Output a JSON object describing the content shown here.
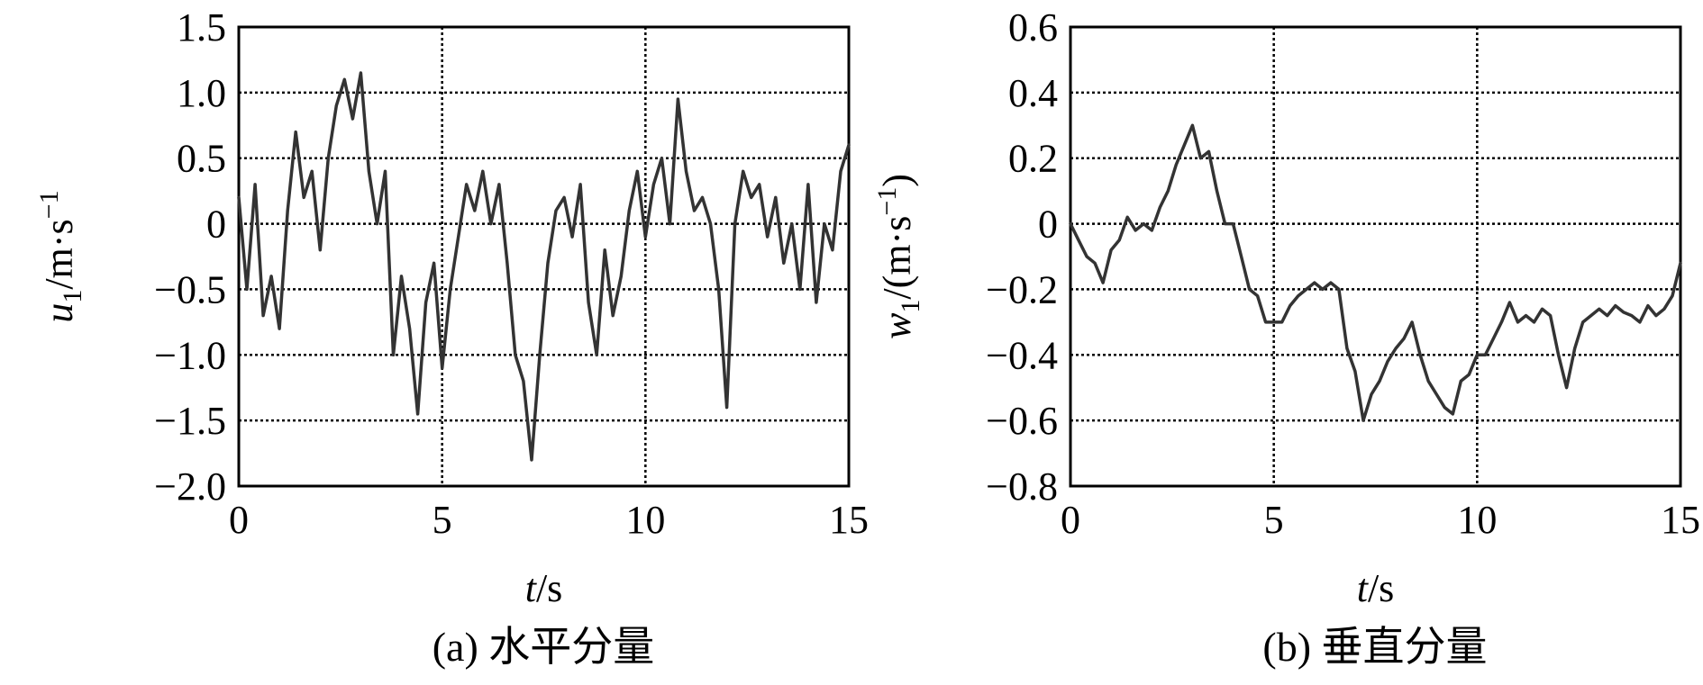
{
  "chart_data": [
    {
      "type": "line",
      "panel": "a",
      "caption": "(a) 水平分量",
      "xlabel": {
        "var": "t",
        "rest": "/s"
      },
      "ylabel": {
        "var": "u",
        "sub": "1",
        "rest": "/m·s",
        "sup": "−1"
      },
      "xlim": [
        0,
        15
      ],
      "ylim": [
        -2.0,
        1.5
      ],
      "xticks": [
        0,
        5,
        10,
        15
      ],
      "xtick_labels": [
        "0",
        "5",
        "10",
        "15"
      ],
      "yticks": [
        -2.0,
        -1.5,
        -1.0,
        -0.5,
        0,
        0.5,
        1.0,
        1.5
      ],
      "ytick_labels": [
        "−2.0",
        "−1.5",
        "−1.0",
        "−0.5",
        "0",
        "0.5",
        "1.0",
        "1.5"
      ],
      "grid": "dotted",
      "line_color": "#333333",
      "x": [
        0,
        0.2,
        0.4,
        0.6,
        0.8,
        1.0,
        1.2,
        1.4,
        1.6,
        1.8,
        2.0,
        2.2,
        2.4,
        2.6,
        2.8,
        3.0,
        3.2,
        3.4,
        3.6,
        3.8,
        4.0,
        4.2,
        4.4,
        4.6,
        4.8,
        5.0,
        5.2,
        5.4,
        5.6,
        5.8,
        6.0,
        6.2,
        6.4,
        6.6,
        6.8,
        7.0,
        7.2,
        7.4,
        7.6,
        7.8,
        8.0,
        8.2,
        8.4,
        8.6,
        8.8,
        9.0,
        9.2,
        9.4,
        9.6,
        9.8,
        10.0,
        10.2,
        10.4,
        10.6,
        10.8,
        11.0,
        11.2,
        11.4,
        11.6,
        11.8,
        12.0,
        12.2,
        12.4,
        12.6,
        12.8,
        13.0,
        13.2,
        13.4,
        13.6,
        13.8,
        14.0,
        14.2,
        14.4,
        14.6,
        14.8,
        15.0
      ],
      "y": [
        0.2,
        -0.5,
        0.3,
        -0.7,
        -0.4,
        -0.8,
        0.1,
        0.7,
        0.2,
        0.4,
        -0.2,
        0.5,
        0.9,
        1.1,
        0.8,
        1.15,
        0.4,
        0.0,
        0.4,
        -1.0,
        -0.4,
        -0.8,
        -1.45,
        -0.6,
        -0.3,
        -1.1,
        -0.5,
        -0.1,
        0.3,
        0.1,
        0.4,
        0.0,
        0.3,
        -0.3,
        -1.0,
        -1.2,
        -1.8,
        -1.0,
        -0.3,
        0.1,
        0.2,
        -0.1,
        0.3,
        -0.6,
        -1.0,
        -0.2,
        -0.7,
        -0.4,
        0.1,
        0.4,
        -0.1,
        0.3,
        0.5,
        0.0,
        0.95,
        0.4,
        0.1,
        0.2,
        0.0,
        -0.5,
        -1.4,
        0.0,
        0.4,
        0.2,
        0.3,
        -0.1,
        0.2,
        -0.3,
        0.0,
        -0.5,
        0.3,
        -0.6,
        0.0,
        -0.2,
        0.4,
        0.6
      ]
    },
    {
      "type": "line",
      "panel": "b",
      "caption": "(b) 垂直分量",
      "xlabel": {
        "var": "t",
        "rest": "/s"
      },
      "ylabel": {
        "var": "w",
        "sub": "1",
        "rest": "/(m·s",
        "sup": "−1",
        "close": ")"
      },
      "xlim": [
        0,
        15
      ],
      "ylim": [
        -0.8,
        0.6
      ],
      "xticks": [
        0,
        5,
        10,
        15
      ],
      "xtick_labels": [
        "0",
        "5",
        "10",
        "15"
      ],
      "yticks": [
        -0.8,
        -0.6,
        -0.4,
        -0.2,
        0,
        0.2,
        0.4,
        0.6
      ],
      "ytick_labels": [
        "−0.8",
        "−0.6",
        "−0.4",
        "−0.2",
        "0",
        "0.2",
        "0.4",
        "0.6"
      ],
      "grid": "dotted",
      "line_color": "#333333",
      "x": [
        0,
        0.2,
        0.4,
        0.6,
        0.8,
        1.0,
        1.2,
        1.4,
        1.6,
        1.8,
        2.0,
        2.2,
        2.4,
        2.6,
        2.8,
        3.0,
        3.2,
        3.4,
        3.6,
        3.8,
        4.0,
        4.2,
        4.4,
        4.6,
        4.8,
        5.0,
        5.2,
        5.4,
        5.6,
        5.8,
        6.0,
        6.2,
        6.4,
        6.6,
        6.8,
        7.0,
        7.2,
        7.4,
        7.6,
        7.8,
        8.0,
        8.2,
        8.4,
        8.6,
        8.8,
        9.0,
        9.2,
        9.4,
        9.6,
        9.8,
        10.0,
        10.2,
        10.4,
        10.6,
        10.8,
        11.0,
        11.2,
        11.4,
        11.6,
        11.8,
        12.0,
        12.2,
        12.4,
        12.6,
        12.8,
        13.0,
        13.2,
        13.4,
        13.6,
        13.8,
        14.0,
        14.2,
        14.4,
        14.6,
        14.8,
        15.0
      ],
      "y": [
        0.0,
        -0.05,
        -0.1,
        -0.12,
        -0.18,
        -0.08,
        -0.05,
        0.02,
        -0.02,
        0.0,
        -0.02,
        0.05,
        0.1,
        0.18,
        0.24,
        0.3,
        0.2,
        0.22,
        0.1,
        0.0,
        0.0,
        -0.1,
        -0.2,
        -0.22,
        -0.3,
        -0.3,
        -0.3,
        -0.25,
        -0.22,
        -0.2,
        -0.18,
        -0.2,
        -0.18,
        -0.2,
        -0.38,
        -0.45,
        -0.6,
        -0.52,
        -0.48,
        -0.42,
        -0.38,
        -0.35,
        -0.3,
        -0.4,
        -0.48,
        -0.52,
        -0.56,
        -0.58,
        -0.48,
        -0.46,
        -0.4,
        -0.4,
        -0.35,
        -0.3,
        -0.24,
        -0.3,
        -0.28,
        -0.3,
        -0.26,
        -0.28,
        -0.4,
        -0.5,
        -0.38,
        -0.3,
        -0.28,
        -0.26,
        -0.28,
        -0.25,
        -0.27,
        -0.28,
        -0.3,
        -0.25,
        -0.28,
        -0.26,
        -0.22,
        -0.12
      ]
    }
  ]
}
